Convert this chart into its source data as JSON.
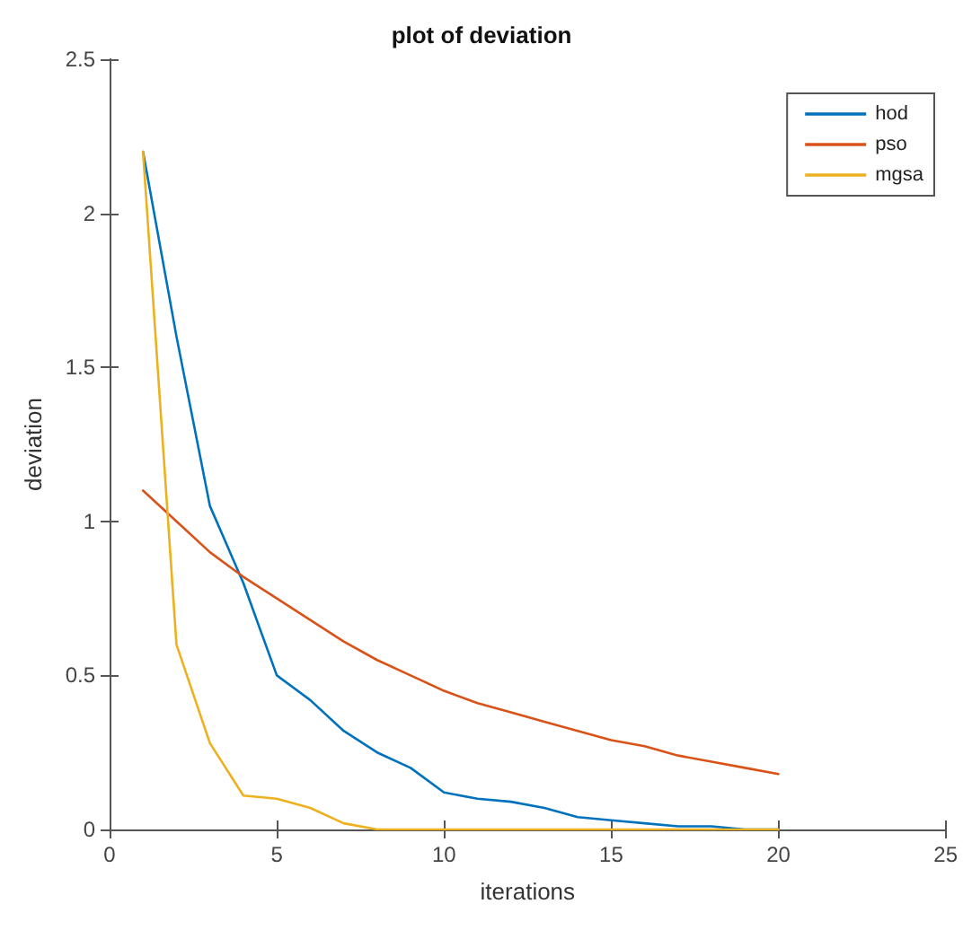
{
  "chart_data": {
    "type": "line",
    "title": "plot of deviation",
    "xlabel": "iterations",
    "ylabel": "deviation",
    "x": [
      1,
      2,
      3,
      4,
      5,
      6,
      7,
      8,
      9,
      10,
      11,
      12,
      13,
      14,
      15,
      16,
      17,
      18,
      19,
      20
    ],
    "series": [
      {
        "name": "hod",
        "color": "#0072bd",
        "values": [
          2.2,
          1.6,
          1.05,
          0.8,
          0.5,
          0.42,
          0.32,
          0.25,
          0.2,
          0.12,
          0.1,
          0.09,
          0.07,
          0.04,
          0.03,
          0.02,
          0.01,
          0.01,
          0,
          0
        ]
      },
      {
        "name": "pso",
        "color": "#d95319",
        "values": [
          1.1,
          1.0,
          0.9,
          0.82,
          0.75,
          0.68,
          0.61,
          0.55,
          0.5,
          0.45,
          0.41,
          0.38,
          0.35,
          0.32,
          0.29,
          0.27,
          0.24,
          0.22,
          0.2,
          0.18
        ]
      },
      {
        "name": "mgsa",
        "color": "#edb120",
        "values": [
          2.2,
          0.6,
          0.28,
          0.11,
          0.1,
          0.07,
          0.02,
          0,
          0,
          0,
          0,
          0,
          0,
          0,
          0,
          0,
          0,
          0,
          0,
          0
        ]
      }
    ],
    "xlim": [
      0,
      25
    ],
    "xticks": [
      0,
      5,
      10,
      15,
      20,
      25
    ],
    "ylim": [
      0,
      2.5
    ],
    "yticks": [
      0,
      0.5,
      1,
      1.5,
      2,
      2.5
    ],
    "grid": false,
    "legend": "top right",
    "marker": "none",
    "line_style": "solid"
  }
}
